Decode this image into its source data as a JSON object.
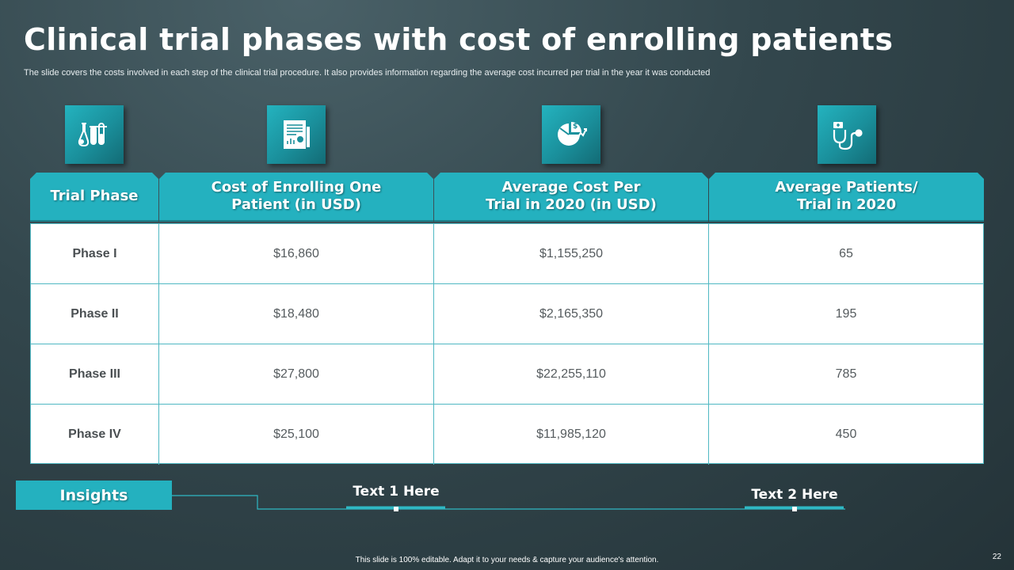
{
  "slide": {
    "title": "Clinical trial phases with cost of enrolling patients",
    "subtitle": "The slide covers the costs involved in each step of the clinical trial procedure. It also provides information regarding the average cost incurred per trial in the year it was conducted",
    "icons": [
      "lab-test-tubes-icon",
      "report-document-icon",
      "pie-chart-dollar-icon",
      "stethoscope-icon"
    ],
    "accent_color": "#24b1bf"
  },
  "table": {
    "headers": [
      "Trial Phase",
      "Cost of Enrolling One\nPatient (in USD)",
      "Average Cost Per\nTrial in 2020 (in USD)",
      "Average Patients/\nTrial in 2020"
    ],
    "rows": [
      {
        "phase": "Phase I",
        "cost_per_patient": "$16,860",
        "avg_cost_per_trial": "$1,155,250",
        "avg_patients": "65"
      },
      {
        "phase": "Phase II",
        "cost_per_patient": "$18,480",
        "avg_cost_per_trial": "$2,165,350",
        "avg_patients": "195"
      },
      {
        "phase": "Phase III",
        "cost_per_patient": "$27,800",
        "avg_cost_per_trial": "$22,255,110",
        "avg_patients": "785"
      },
      {
        "phase": "Phase IV",
        "cost_per_patient": "$25,100",
        "avg_cost_per_trial": "$11,985,120",
        "avg_patients": "450"
      }
    ]
  },
  "insights": {
    "label": "Insights",
    "text1": "Text 1 Here",
    "text2": "Text 2 Here"
  },
  "footer": {
    "note": "This slide is 100% editable. Adapt it to your needs & capture your audience's attention.",
    "page_number": "22"
  }
}
